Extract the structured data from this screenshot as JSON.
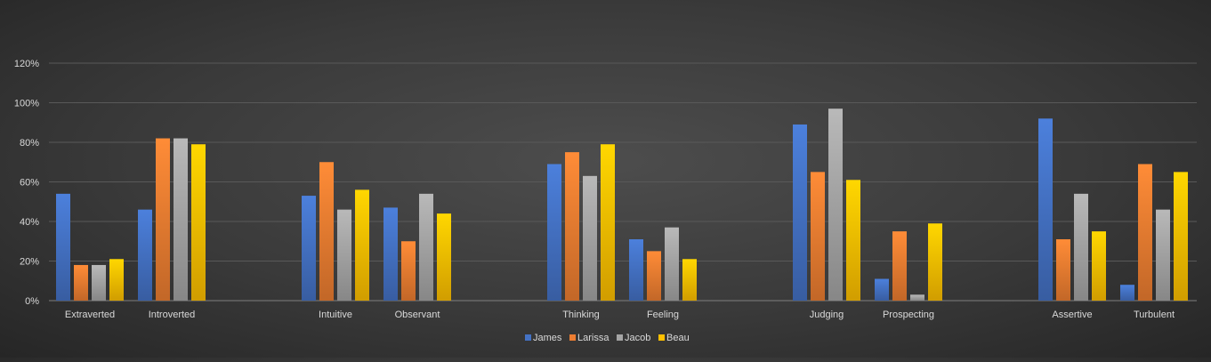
{
  "chart_data": {
    "type": "bar",
    "title": "",
    "xlabel": "",
    "ylabel": "",
    "ylim": [
      0,
      120
    ],
    "y_tick_labels": [
      "0%",
      "20%",
      "40%",
      "60%",
      "80%",
      "100%",
      "120%"
    ],
    "y_ticks": [
      0,
      20,
      40,
      60,
      80,
      100,
      120
    ],
    "grid": true,
    "legend_position": "bottom",
    "groups": [
      {
        "categories": [
          "Extraverted",
          "Introverted"
        ]
      },
      {
        "categories": [
          "Intuitive",
          "Observant"
        ]
      },
      {
        "categories": [
          "Thinking",
          "Feeling"
        ]
      },
      {
        "categories": [
          "Judging",
          "Prospecting"
        ]
      },
      {
        "categories": [
          "Assertive",
          "Turbulent"
        ]
      }
    ],
    "categories": [
      "Extraverted",
      "Introverted",
      "Intuitive",
      "Observant",
      "Thinking",
      "Feeling",
      "Judging",
      "Prospecting",
      "Assertive",
      "Turbulent"
    ],
    "series": [
      {
        "name": "James",
        "color": "#4472c4",
        "values": [
          54,
          46,
          53,
          47,
          69,
          31,
          89,
          11,
          92,
          8
        ]
      },
      {
        "name": "Larissa",
        "color": "#ed7d31",
        "values": [
          18,
          82,
          70,
          30,
          75,
          25,
          65,
          35,
          31,
          69
        ]
      },
      {
        "name": "Jacob",
        "color": "#a5a5a5",
        "values": [
          18,
          82,
          46,
          54,
          63,
          37,
          97,
          3,
          54,
          46
        ]
      },
      {
        "name": "Beau",
        "color": "#ffc000",
        "values": [
          21,
          79,
          56,
          44,
          79,
          21,
          61,
          39,
          35,
          65
        ]
      }
    ]
  }
}
